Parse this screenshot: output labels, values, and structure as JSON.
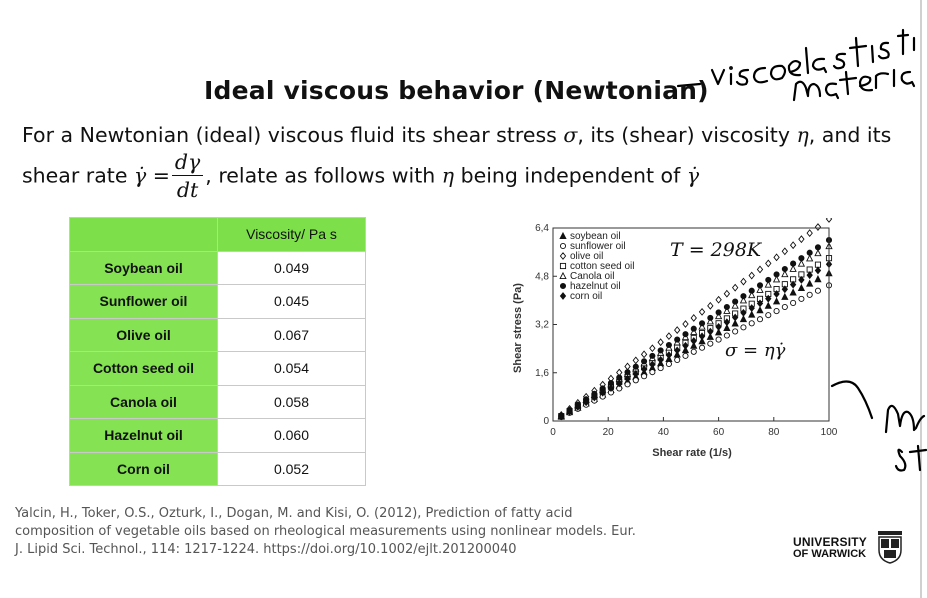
{
  "slide": {
    "title": "Ideal viscous behavior (Newtonian)",
    "intro_line1_pre": "For a Newtonian (ideal) viscous fluid its shear stress ",
    "intro_line1_sigma": "σ",
    "intro_line1_mid": ", its (shear) viscosity ",
    "intro_line1_eta": "η",
    "intro_line1_post": ", and its",
    "intro_line2_pre": "shear rate ",
    "intro_line2_gamma": "γ̇ =",
    "frac_num": "dγ",
    "frac_den": "dt",
    "intro_line2_mid": ", relate as follows with ",
    "intro_line2_eta": "η",
    "intro_line2_post": " being independent of ",
    "intro_line2_gamma2": "γ̇"
  },
  "table": {
    "header": "Viscosity/ Pa s",
    "rows": [
      {
        "name": "Soybean oil",
        "value": "0.049"
      },
      {
        "name": "Sunflower oil",
        "value": "0.045"
      },
      {
        "name": "Olive oil",
        "value": "0.067"
      },
      {
        "name": "Cotton seed oil",
        "value": "0.054"
      },
      {
        "name": "Canola oil",
        "value": "0.058"
      },
      {
        "name": "Hazelnut oil",
        "value": "0.060"
      },
      {
        "name": "Corn oil",
        "value": "0.052"
      }
    ]
  },
  "chart_data": {
    "type": "scatter",
    "xlabel": "Shear rate (1/s)",
    "ylabel": "Shear stress (Pa)",
    "xlim": [
      0,
      100
    ],
    "ylim": [
      0,
      6.4
    ],
    "xticks": [
      "0",
      "20",
      "40",
      "60",
      "80",
      "100"
    ],
    "yticks": [
      "0",
      "1,6",
      "3,2",
      "4,8",
      "6,4"
    ],
    "annotation_T": "T = 298K",
    "annotation_law": "σ = ηγ̇",
    "legend_position": "top-left",
    "x": [
      3,
      6,
      9,
      12,
      15,
      18,
      21,
      24,
      27,
      30,
      33,
      36,
      39,
      42,
      45,
      48,
      51,
      54,
      57,
      60,
      63,
      66,
      69,
      72,
      75,
      78,
      81,
      84,
      87,
      90,
      93,
      96,
      100
    ],
    "series": [
      {
        "name": "soybean oil",
        "marker": "triangle-filled",
        "viscosity": 0.049
      },
      {
        "name": "sunflower oil",
        "marker": "circle-open",
        "viscosity": 0.045
      },
      {
        "name": "olive oil",
        "marker": "diamond-open",
        "viscosity": 0.067
      },
      {
        "name": "cotton seed oil",
        "marker": "square-open",
        "viscosity": 0.054
      },
      {
        "name": "Canola oil",
        "marker": "triangle-open",
        "viscosity": 0.058
      },
      {
        "name": "hazelnut oil",
        "marker": "circle-filled",
        "viscosity": 0.06
      },
      {
        "name": "corn oil",
        "marker": "diamond-filled",
        "viscosity": 0.052
      }
    ]
  },
  "reference": {
    "line1": "Yalcin, H., Toker, O.S., Ozturk, I., Dogan, M. and Kisi, O. (2012), Prediction of fatty acid",
    "line2": "composition of vegetable oils based on rheological measurements using nonlinear models. Eur.",
    "line3": "J. Lipid Sci. Technol., 114: 1217-1224. https://doi.org/10.1002/ejlt.201200040"
  },
  "logo": {
    "line1": "UNIVERSITY",
    "line2": "OF WARWICK"
  },
  "handwriting": {
    "note_top": "— viscoelastic material",
    "note_right": "— shear stress"
  },
  "colors": {
    "table_header_green": "#7de04a",
    "table_name_green": "#85e252"
  }
}
